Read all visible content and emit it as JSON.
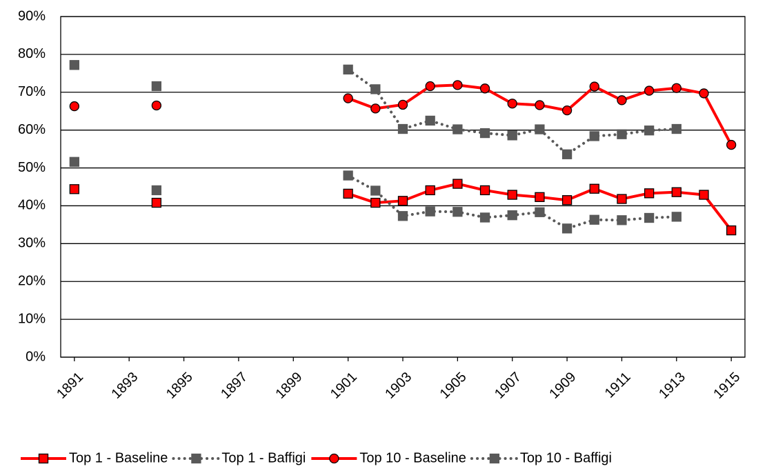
{
  "chart_data": {
    "type": "line",
    "x": [
      1891,
      1892,
      1893,
      1894,
      1895,
      1896,
      1897,
      1898,
      1899,
      1900,
      1901,
      1902,
      1903,
      1904,
      1905,
      1906,
      1907,
      1908,
      1909,
      1910,
      1911,
      1912,
      1913,
      1914,
      1915
    ],
    "series": [
      {
        "name": "Top 1 - Baseline",
        "color": "#ff0000",
        "marker": "square",
        "dotted": false,
        "values": [
          44.4,
          null,
          null,
          40.8,
          null,
          null,
          null,
          null,
          null,
          null,
          43.2,
          40.8,
          41.3,
          44.1,
          45.8,
          44.1,
          42.9,
          42.3,
          41.5,
          44.5,
          41.8,
          43.3,
          43.6,
          42.9,
          33.5
        ]
      },
      {
        "name": "Top 1 - Baffigi",
        "color": "#595959",
        "marker": "square",
        "dotted": true,
        "values": [
          51.6,
          null,
          null,
          44.1,
          null,
          null,
          null,
          null,
          null,
          null,
          48.0,
          44.0,
          37.3,
          38.5,
          38.4,
          36.9,
          37.5,
          38.3,
          34.0,
          36.3,
          36.2,
          36.8,
          37.1,
          null,
          null
        ]
      },
      {
        "name": "Top 10 - Baseline",
        "color": "#ff0000",
        "marker": "circle",
        "dotted": false,
        "values": [
          66.3,
          null,
          null,
          66.5,
          null,
          null,
          null,
          null,
          null,
          null,
          68.4,
          65.7,
          66.7,
          71.6,
          71.9,
          71.0,
          67.0,
          66.6,
          65.2,
          71.5,
          67.9,
          70.4,
          71.1,
          69.7,
          56.1
        ]
      },
      {
        "name": "Top 10 - Baffigi",
        "color": "#595959",
        "marker": "square",
        "dotted": true,
        "values": [
          77.2,
          null,
          null,
          71.6,
          null,
          null,
          null,
          null,
          null,
          null,
          76.0,
          70.8,
          60.3,
          62.5,
          60.2,
          59.2,
          58.6,
          60.2,
          53.6,
          58.4,
          58.9,
          59.9,
          60.3,
          null,
          null
        ]
      }
    ],
    "xlim": [
      1890.5,
      1915.5
    ],
    "xticks": [
      1891,
      1893,
      1895,
      1897,
      1899,
      1901,
      1903,
      1905,
      1907,
      1909,
      1911,
      1913,
      1915
    ],
    "ylim": [
      0,
      90
    ],
    "yticks": [
      {
        "value": 0,
        "label": "0%"
      },
      {
        "value": 10,
        "label": "10%"
      },
      {
        "value": 20,
        "label": "20%"
      },
      {
        "value": 30,
        "label": "30%"
      },
      {
        "value": 40,
        "label": "40%"
      },
      {
        "value": 50,
        "label": "50%"
      },
      {
        "value": 60,
        "label": "60%"
      },
      {
        "value": 70,
        "label": "70%"
      },
      {
        "value": 80,
        "label": "80%"
      },
      {
        "value": 90,
        "label": "90%"
      }
    ],
    "grid": true,
    "legend": "bottom"
  }
}
